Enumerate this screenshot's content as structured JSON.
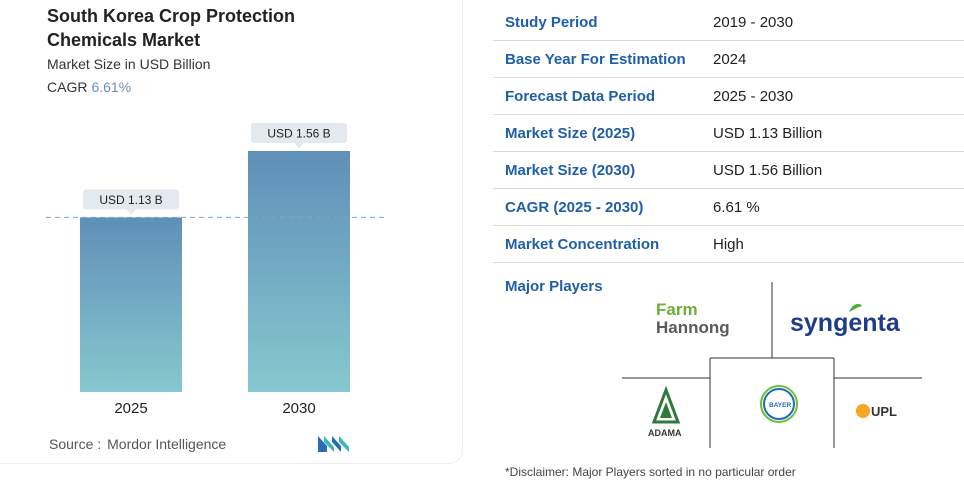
{
  "header": {
    "title": "South Korea Crop Protection Chemicals Market",
    "subtitle": "Market Size in USD Billion",
    "cagr_label": "CAGR",
    "cagr_value": "6.61%"
  },
  "chart_data": {
    "type": "bar",
    "categories": [
      "2025",
      "2030"
    ],
    "values": [
      1.13,
      1.56
    ],
    "data_labels": [
      "USD 1.13 B",
      "USD 1.56 B"
    ],
    "ylim": [
      0,
      1.56
    ],
    "reference_line": 1.13,
    "bar_color_top": "#5f90b8",
    "bar_color_bottom": "#86c8cf"
  },
  "source": {
    "label": "Source :",
    "value": "Mordor Intelligence"
  },
  "table": {
    "rows": [
      {
        "key": "Study Period",
        "value": "2019 - 2030"
      },
      {
        "key": "Base Year For Estimation",
        "value": "2024"
      },
      {
        "key": "Forecast Data Period",
        "value": "2025 - 2030"
      },
      {
        "key": "Market Size (2025)",
        "value": "USD 1.13 Billion"
      },
      {
        "key": "Market Size (2030)",
        "value": "USD 1.56 Billion"
      },
      {
        "key": "CAGR (2025 - 2030)",
        "value": "6.61 %"
      },
      {
        "key": "Market Concentration",
        "value": "High"
      }
    ]
  },
  "major_players": {
    "label": "Major Players",
    "logos": {
      "farm": "Farm",
      "hannong": "Hannong",
      "syngenta": "syngenta",
      "adama": "ADAMA",
      "bayer": "BAYER",
      "upl": "UPL"
    }
  },
  "disclaimer": "*Disclaimer: Major Players sorted in no particular order"
}
